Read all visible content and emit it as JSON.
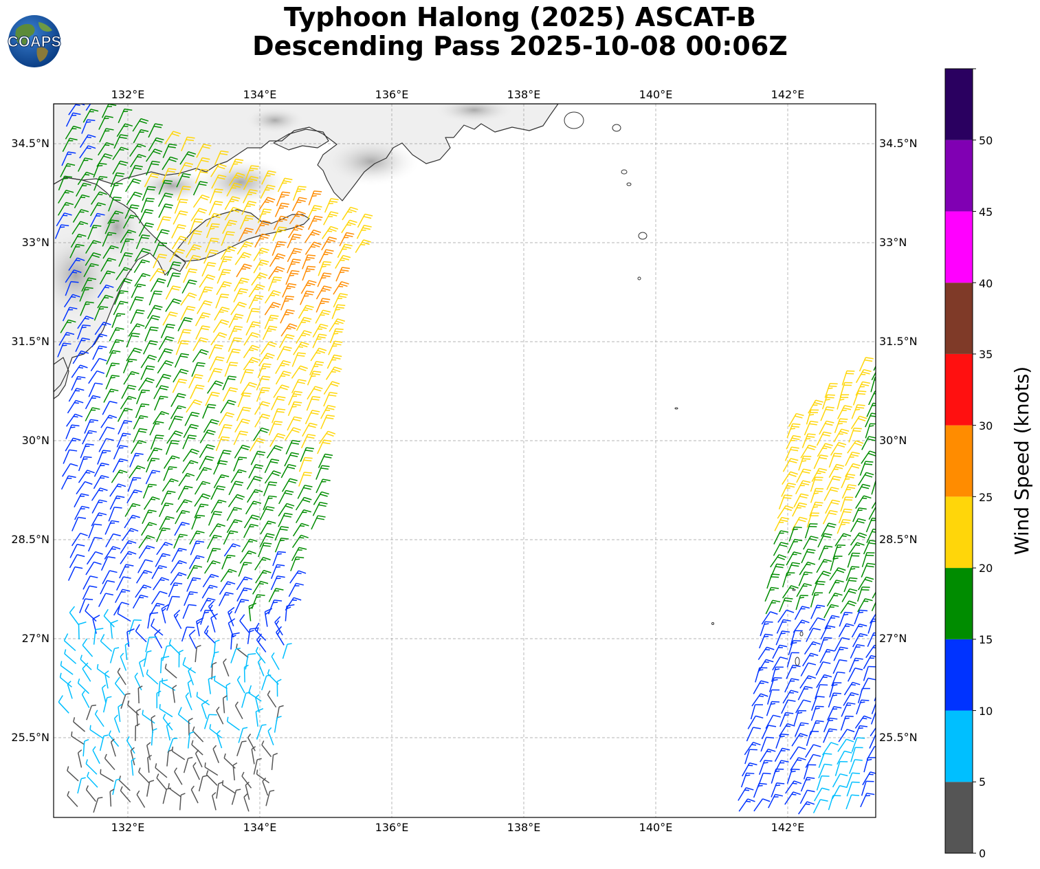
{
  "title": {
    "line1": "Typhoon Halong (2025) ASCAT-B",
    "line2": "Descending Pass 2025-10-08 00:06Z"
  },
  "logo": {
    "text": "COAPS",
    "icon": "globe-logo-icon"
  },
  "map": {
    "lon_labels": [
      "132°E",
      "134°E",
      "136°E",
      "138°E",
      "140°E",
      "142°E"
    ],
    "lat_labels": [
      "34.5°N",
      "33°N",
      "31.5°N",
      "30°N",
      "28.5°N",
      "27°N",
      "25.5°N"
    ],
    "lon_range": [
      130.8,
      143.3
    ],
    "lat_range": [
      24.1,
      34.9
    ],
    "gridlines": true
  },
  "colorbar": {
    "label": "Wind Speed (knots)",
    "ticks": [
      "0",
      "5",
      "10",
      "15",
      "20",
      "25",
      "30",
      "35",
      "40",
      "45",
      "50"
    ],
    "bins": [
      {
        "min": 0,
        "max": 5,
        "color": "#555555"
      },
      {
        "min": 5,
        "max": 10,
        "color": "#00bfff"
      },
      {
        "min": 10,
        "max": 15,
        "color": "#0033ff"
      },
      {
        "min": 15,
        "max": 20,
        "color": "#008c00"
      },
      {
        "min": 20,
        "max": 25,
        "color": "#ffd60a"
      },
      {
        "min": 25,
        "max": 30,
        "color": "#ff8c00"
      },
      {
        "min": 30,
        "max": 35,
        "color": "#ff1010"
      },
      {
        "min": 35,
        "max": 40,
        "color": "#7f3a28"
      },
      {
        "min": 40,
        "max": 45,
        "color": "#ff00ff"
      },
      {
        "min": 45,
        "max": 50,
        "color": "#8000b3"
      },
      {
        "min": 50,
        "max": 55,
        "color": "#2a0060"
      }
    ]
  },
  "coastline_color": "#333333"
}
